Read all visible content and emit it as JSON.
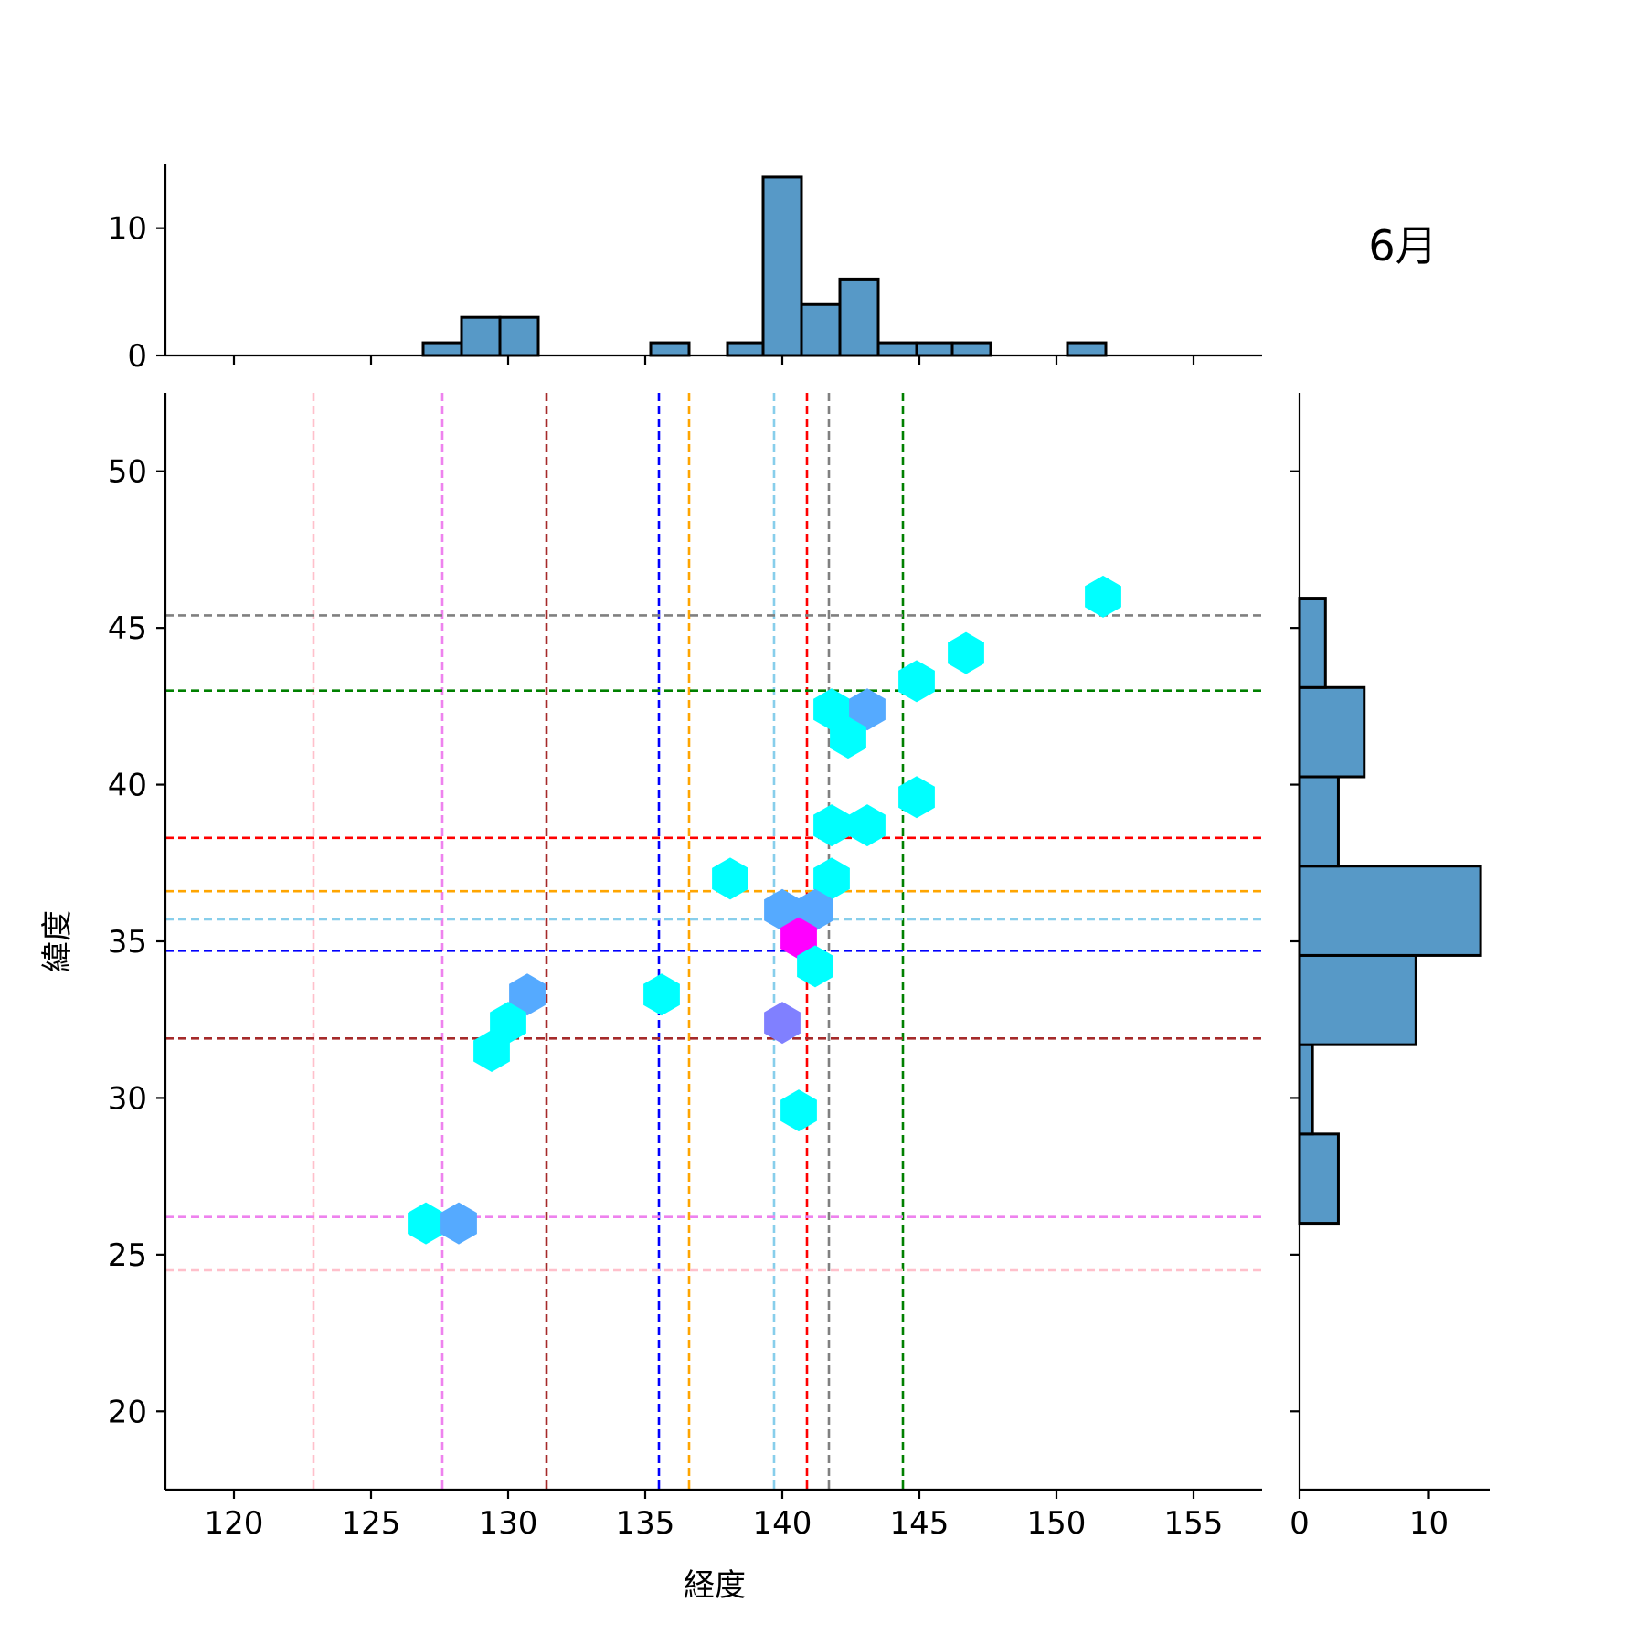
{
  "title": "6月",
  "chart_data": {
    "type": "hexbin-jointplot",
    "title": "6月",
    "xlabel": "経度",
    "ylabel": "緯度",
    "xlim": [
      117.5,
      157.5
    ],
    "ylim": [
      17.5,
      52.5
    ],
    "xticks": [
      120,
      125,
      130,
      135,
      140,
      145,
      150,
      155
    ],
    "yticks": [
      20,
      25,
      30,
      35,
      40,
      45,
      50
    ],
    "vlines": [
      {
        "x": 122.9,
        "color": "#ffc0cb"
      },
      {
        "x": 127.6,
        "color": "#ee82ee"
      },
      {
        "x": 131.4,
        "color": "#a52a2a"
      },
      {
        "x": 135.5,
        "color": "#0000ff"
      },
      {
        "x": 136.6,
        "color": "#ffa500"
      },
      {
        "x": 139.7,
        "color": "#87ceeb"
      },
      {
        "x": 140.9,
        "color": "#ff0000"
      },
      {
        "x": 141.7,
        "color": "#808080"
      },
      {
        "x": 144.4,
        "color": "#008000"
      }
    ],
    "hlines": [
      {
        "y": 45.4,
        "color": "#808080"
      },
      {
        "y": 43.0,
        "color": "#008000"
      },
      {
        "y": 38.3,
        "color": "#ff0000"
      },
      {
        "y": 36.6,
        "color": "#ffa500"
      },
      {
        "y": 35.7,
        "color": "#87ceeb"
      },
      {
        "y": 34.7,
        "color": "#0000ff"
      },
      {
        "y": 31.9,
        "color": "#a52a2a"
      },
      {
        "y": 26.2,
        "color": "#ee82ee"
      },
      {
        "y": 24.5,
        "color": "#ffc0cb"
      }
    ],
    "hexbins": [
      {
        "x": 151.7,
        "y": 46.0,
        "count": 1,
        "color": "#00ffff"
      },
      {
        "x": 146.7,
        "y": 44.2,
        "count": 1,
        "color": "#00ffff"
      },
      {
        "x": 144.9,
        "y": 43.3,
        "count": 1,
        "color": "#00ffff"
      },
      {
        "x": 141.8,
        "y": 42.4,
        "count": 1,
        "color": "#00ffff"
      },
      {
        "x": 143.1,
        "y": 42.4,
        "count": 2,
        "color": "#55aaff"
      },
      {
        "x": 142.4,
        "y": 41.5,
        "count": 1,
        "color": "#00ffff"
      },
      {
        "x": 144.9,
        "y": 39.6,
        "count": 1,
        "color": "#00ffff"
      },
      {
        "x": 141.8,
        "y": 38.7,
        "count": 1,
        "color": "#00ffff"
      },
      {
        "x": 143.1,
        "y": 38.7,
        "count": 1,
        "color": "#00ffff"
      },
      {
        "x": 138.1,
        "y": 37.0,
        "count": 1,
        "color": "#00ffff"
      },
      {
        "x": 141.8,
        "y": 37.0,
        "count": 1,
        "color": "#00ffff"
      },
      {
        "x": 140.0,
        "y": 36.0,
        "count": 2,
        "color": "#55aaff"
      },
      {
        "x": 141.2,
        "y": 36.0,
        "count": 2,
        "color": "#55aaff"
      },
      {
        "x": 140.6,
        "y": 35.1,
        "count": 5,
        "color": "#ff00ff"
      },
      {
        "x": 141.2,
        "y": 34.2,
        "count": 1,
        "color": "#00ffff"
      },
      {
        "x": 130.7,
        "y": 33.3,
        "count": 2,
        "color": "#55aaff"
      },
      {
        "x": 135.6,
        "y": 33.3,
        "count": 1,
        "color": "#00ffff"
      },
      {
        "x": 130.0,
        "y": 32.4,
        "count": 1,
        "color": "#00ffff"
      },
      {
        "x": 140.0,
        "y": 32.4,
        "count": 3,
        "color": "#8080ff"
      },
      {
        "x": 129.4,
        "y": 31.5,
        "count": 1,
        "color": "#00ffff"
      },
      {
        "x": 140.6,
        "y": 29.6,
        "count": 1,
        "color": "#00ffff"
      },
      {
        "x": 127.0,
        "y": 26.0,
        "count": 1,
        "color": "#00ffff"
      },
      {
        "x": 128.2,
        "y": 26.0,
        "count": 2,
        "color": "#55aaff"
      }
    ],
    "hist_x": {
      "ylim": [
        0,
        15
      ],
      "yticks": [
        0,
        10
      ],
      "bins": [
        {
          "x0": 126.9,
          "x1": 128.3,
          "count": 1
        },
        {
          "x0": 128.3,
          "x1": 129.7,
          "count": 3
        },
        {
          "x0": 129.7,
          "x1": 131.1,
          "count": 3
        },
        {
          "x0": 131.1,
          "x1": 132.4,
          "count": 0
        },
        {
          "x0": 132.4,
          "x1": 133.8,
          "count": 0
        },
        {
          "x0": 133.8,
          "x1": 135.2,
          "count": 0
        },
        {
          "x0": 135.2,
          "x1": 136.6,
          "count": 1
        },
        {
          "x0": 136.6,
          "x1": 138.0,
          "count": 0
        },
        {
          "x0": 138.0,
          "x1": 139.3,
          "count": 1
        },
        {
          "x0": 139.3,
          "x1": 140.7,
          "count": 14
        },
        {
          "x0": 140.7,
          "x1": 142.1,
          "count": 4
        },
        {
          "x0": 142.1,
          "x1": 143.5,
          "count": 6
        },
        {
          "x0": 143.5,
          "x1": 144.9,
          "count": 1
        },
        {
          "x0": 144.9,
          "x1": 146.2,
          "count": 1
        },
        {
          "x0": 146.2,
          "x1": 147.6,
          "count": 1
        },
        {
          "x0": 147.6,
          "x1": 149.0,
          "count": 0
        },
        {
          "x0": 149.0,
          "x1": 150.4,
          "count": 0
        },
        {
          "x0": 150.4,
          "x1": 151.8,
          "count": 1
        }
      ]
    },
    "hist_y": {
      "xlim": [
        0,
        14.7
      ],
      "xticks": [
        0,
        10
      ],
      "bins": [
        {
          "y0": 26.0,
          "y1": 28.85,
          "count": 3
        },
        {
          "y0": 28.85,
          "y1": 31.7,
          "count": 1
        },
        {
          "y0": 31.7,
          "y1": 34.55,
          "count": 9
        },
        {
          "y0": 34.55,
          "y1": 37.4,
          "count": 14
        },
        {
          "y0": 37.4,
          "y1": 40.25,
          "count": 3
        },
        {
          "y0": 40.25,
          "y1": 43.1,
          "count": 5
        },
        {
          "y0": 43.1,
          "y1": 45.95,
          "count": 2
        }
      ]
    }
  }
}
